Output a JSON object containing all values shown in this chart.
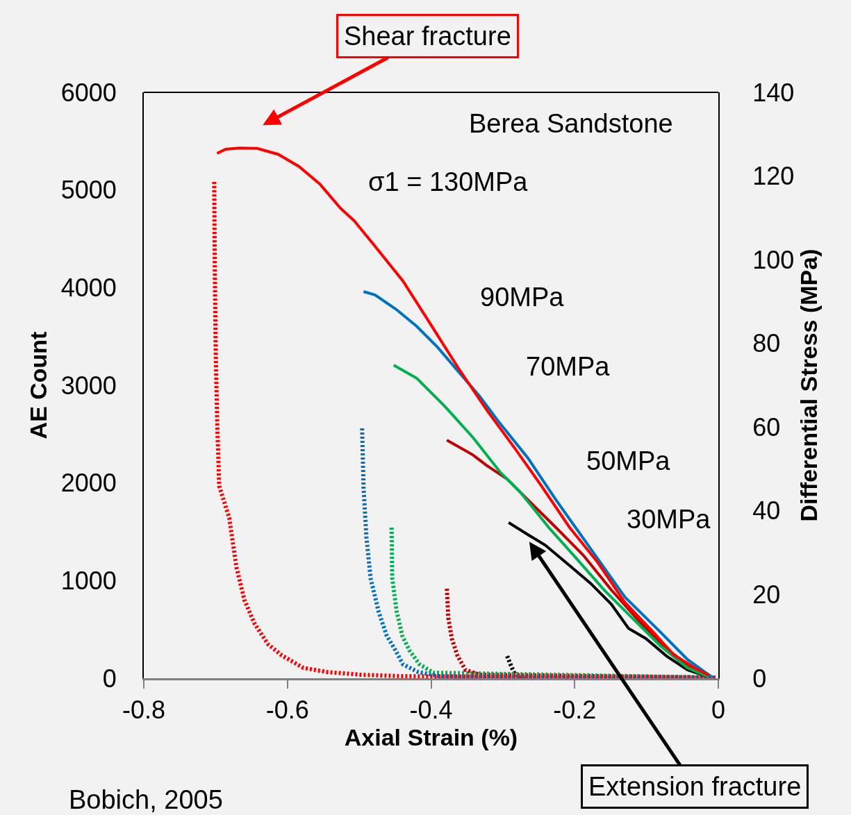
{
  "chart_data": {
    "type": "line",
    "xlabel": "Axial Strain (%)",
    "ylabel": "AE Count",
    "y2label": "Differential Stress (MPa)",
    "xlim": [
      -0.8,
      0
    ],
    "xticks": [
      -0.8,
      -0.6,
      -0.4,
      -0.2,
      0
    ],
    "ylim": [
      0,
      6000
    ],
    "yticks": [
      0,
      1000,
      2000,
      3000,
      4000,
      5000,
      6000
    ],
    "y2lim": [
      0,
      140
    ],
    "y2ticks": [
      0,
      20,
      40,
      60,
      80,
      100,
      120,
      140
    ],
    "grid": false,
    "marker": "none",
    "series": [
      {
        "color": "#ff0000",
        "axis": "y2",
        "line_style": "solid",
        "x": [
          -0.698,
          -0.686,
          -0.667,
          -0.642,
          -0.613,
          -0.584,
          -0.555,
          -0.526,
          -0.507,
          -0.478,
          -0.439,
          -0.4,
          -0.362,
          -0.323,
          -0.284,
          -0.246,
          -0.207,
          -0.168,
          -0.13,
          -0.091,
          -0.062,
          -0.033,
          -0.013
        ],
        "values": [
          125.4,
          126.4,
          126.7,
          126.6,
          125.2,
          122.3,
          118.1,
          112.3,
          109.3,
          103.2,
          94.9,
          84.4,
          74.1,
          64.2,
          55.1,
          45.9,
          36.0,
          27.7,
          18.1,
          11.1,
          5.6,
          2.5,
          0.7
        ]
      },
      {
        "color": "#0070c0",
        "axis": "y2",
        "line_style": "solid",
        "x": [
          -0.494,
          -0.478,
          -0.449,
          -0.42,
          -0.391,
          -0.362,
          -0.333,
          -0.304,
          -0.265,
          -0.226,
          -0.178,
          -0.13,
          -0.081,
          -0.043,
          -0.009
        ],
        "values": [
          92.4,
          91.6,
          88.2,
          84.1,
          79.1,
          73.3,
          67.5,
          60.9,
          52.6,
          42.6,
          31.0,
          19.4,
          11.1,
          4.5,
          0.3
        ]
      },
      {
        "color": "#00b050",
        "axis": "y2",
        "line_style": "solid",
        "x": [
          -0.452,
          -0.42,
          -0.381,
          -0.342,
          -0.304,
          -0.275,
          -0.236,
          -0.197,
          -0.159,
          -0.12,
          -0.081,
          -0.043,
          -0.013
        ],
        "values": [
          74.8,
          71.7,
          65.0,
          57.6,
          49.3,
          44.3,
          36.0,
          28.5,
          21.1,
          14.4,
          7.8,
          2.5,
          0.3
        ]
      },
      {
        "color": "#c00000",
        "axis": "y2",
        "line_style": "solid",
        "x": [
          -0.378,
          -0.342,
          -0.323,
          -0.294,
          -0.265,
          -0.226,
          -0.188,
          -0.149,
          -0.11,
          -0.072,
          -0.033,
          -0.013
        ],
        "values": [
          56.9,
          53.4,
          50.9,
          47.6,
          42.6,
          36.0,
          29.4,
          21.1,
          13.6,
          7.0,
          2.0,
          0.3
        ]
      },
      {
        "color": "#000000",
        "axis": "y2",
        "line_style": "solid",
        "x": [
          -0.292,
          -0.265,
          -0.241,
          -0.207,
          -0.178,
          -0.149,
          -0.125,
          -0.101,
          -0.072,
          -0.043,
          -0.013
        ],
        "values": [
          37.2,
          34.3,
          31.8,
          26.9,
          22.7,
          17.7,
          11.9,
          9.5,
          5.3,
          2.0,
          0.3
        ]
      },
      {
        "color": "#ff0000",
        "axis": "y",
        "line_style": "dotted",
        "x": [
          -0.702,
          -0.701,
          -0.7,
          -0.698,
          -0.695,
          -0.681,
          -0.671,
          -0.66,
          -0.646,
          -0.627,
          -0.608,
          -0.578,
          -0.545,
          -0.498,
          -0.44,
          -0.004
        ],
        "values": [
          5083,
          4102,
          3391,
          2680,
          1969,
          1642,
          1137,
          803,
          562,
          348,
          235,
          107,
          64,
          36,
          21,
          7
        ]
      },
      {
        "color": "#0070c0",
        "axis": "y",
        "line_style": "dotted",
        "x": [
          -0.496,
          -0.494,
          -0.49,
          -0.484,
          -0.473,
          -0.462,
          -0.45,
          -0.439,
          -0.418,
          -0.384,
          -0.003
        ],
        "values": [
          2559,
          1955,
          1443,
          1017,
          682,
          441,
          291,
          142,
          64,
          14,
          0
        ]
      },
      {
        "color": "#00b050",
        "axis": "y",
        "line_style": "dotted",
        "x": [
          -0.455,
          -0.454,
          -0.448,
          -0.44,
          -0.43,
          -0.416,
          -0.397,
          -0.004
        ],
        "values": [
          1543,
          1024,
          690,
          434,
          284,
          142,
          57,
          7
        ]
      },
      {
        "color": "#c00000",
        "axis": "y",
        "line_style": "dotted",
        "x": [
          -0.378,
          -0.376,
          -0.371,
          -0.363,
          -0.352,
          -0.333,
          -0.004
        ],
        "values": [
          917,
          618,
          405,
          227,
          85,
          36,
          7
        ]
      },
      {
        "color": "#000000",
        "axis": "y",
        "line_style": "dotted",
        "x": [
          -0.294,
          -0.289,
          -0.284,
          -0.27
        ],
        "values": [
          227,
          135,
          50,
          7
        ]
      }
    ],
    "annotations": [
      "Shear fracture",
      "Berea Sandstone",
      "σ1 = 130MPa",
      "90MPa",
      "70MPa",
      "50MPa",
      "30MPa",
      "Extension fracture",
      "Bobich, 2005"
    ]
  }
}
